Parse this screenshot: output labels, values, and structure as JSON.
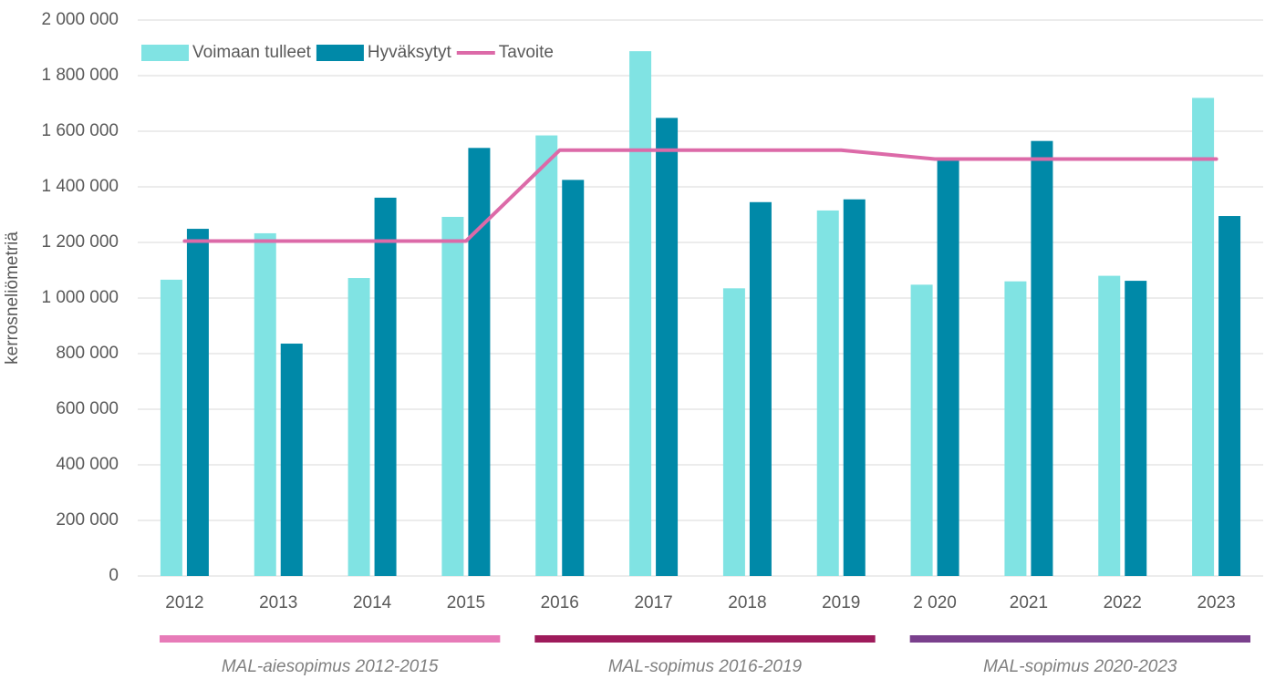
{
  "chart_data": {
    "type": "bar",
    "y_label": "kerrosneliömetriä",
    "categories": [
      "2012",
      "2013",
      "2014",
      "2015",
      "2016",
      "2017",
      "2018",
      "2019",
      "2 020",
      "2021",
      "2022",
      "2023"
    ],
    "series": [
      {
        "name": "Voimaan tulleet",
        "type": "bar",
        "color": "#80e3e3",
        "values": [
          1066000,
          1233000,
          1072000,
          1292000,
          1585000,
          1888000,
          1035000,
          1315000,
          1048000,
          1060000,
          1080000,
          1720000
        ]
      },
      {
        "name": "Hyväksytyt",
        "type": "bar",
        "color": "#0089a8",
        "values": [
          1249000,
          836000,
          1361000,
          1540000,
          1425000,
          1648000,
          1345000,
          1355000,
          1500000,
          1565000,
          1062000,
          1295000
        ]
      },
      {
        "name": "Tavoite",
        "type": "line",
        "color": "#dc6aa8",
        "values": [
          1205000,
          1205000,
          1205000,
          1205000,
          1532000,
          1532000,
          1532000,
          1532000,
          1500000,
          1500000,
          1500000,
          1500000
        ]
      }
    ],
    "ylim": [
      0,
      2000000
    ],
    "yticks": [
      0,
      {
        "value": 200000,
        "label": "200 000"
      },
      {
        "value": 400000,
        "label": "400 000"
      },
      {
        "value": 600000,
        "label": "600 000"
      },
      {
        "value": 800000,
        "label": "800 000"
      },
      {
        "value": 1000000,
        "label": "1 000 000"
      },
      {
        "value": 1200000,
        "label": "1 200 000"
      },
      {
        "value": 1400000,
        "label": "1 400 000"
      },
      {
        "value": 1600000,
        "label": "1 600 000"
      },
      {
        "value": 1800000,
        "label": "1 800 000"
      },
      {
        "value": 2000000,
        "label": "2 000 000"
      }
    ],
    "grid": true,
    "legend": "top-left",
    "periods": [
      {
        "label": "MAL-aiesopimus 2012-2015",
        "color": "#e77bb8"
      },
      {
        "label": "MAL-sopimus 2016-2019",
        "color": "#9e1b5b"
      },
      {
        "label": "MAL-sopimus 2020-2023",
        "color": "#7a408d"
      }
    ]
  }
}
